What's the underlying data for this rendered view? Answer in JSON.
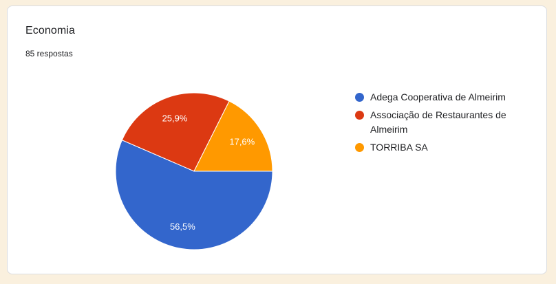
{
  "page": {
    "background_color": "#FAF0DE"
  },
  "card": {
    "background_color": "#FFFFFF",
    "border_color": "#DADCE0"
  },
  "header": {
    "title": "Economia",
    "responses_label": "85 respostas"
  },
  "chart_data": {
    "type": "pie",
    "title": "Economia",
    "subtitle": "85 respostas",
    "total_responses": 85,
    "legend_position": "right",
    "slice_labels": "percent-inside",
    "slice_label_color": "#FFFFFF",
    "start_angle_deg": 90,
    "direction": "clockwise",
    "categories": [
      "Adega Cooperativa de Almeirim",
      "Associação de Restaurantes de Almeirim",
      "TORRIBA SA"
    ],
    "values_percent": [
      56.5,
      25.9,
      17.6
    ],
    "slices": [
      {
        "label": "Adega Cooperativa de Almeirim",
        "percent": 56.5,
        "display_percent": "56,5%",
        "color": "#3366CC"
      },
      {
        "label": "Associação de Restaurantes de Almeirim",
        "percent": 25.9,
        "display_percent": "25,9%",
        "color": "#DC3912"
      },
      {
        "label": "TORRIBA SA",
        "percent": 17.6,
        "display_percent": "17,6%",
        "color": "#FF9900"
      }
    ]
  }
}
